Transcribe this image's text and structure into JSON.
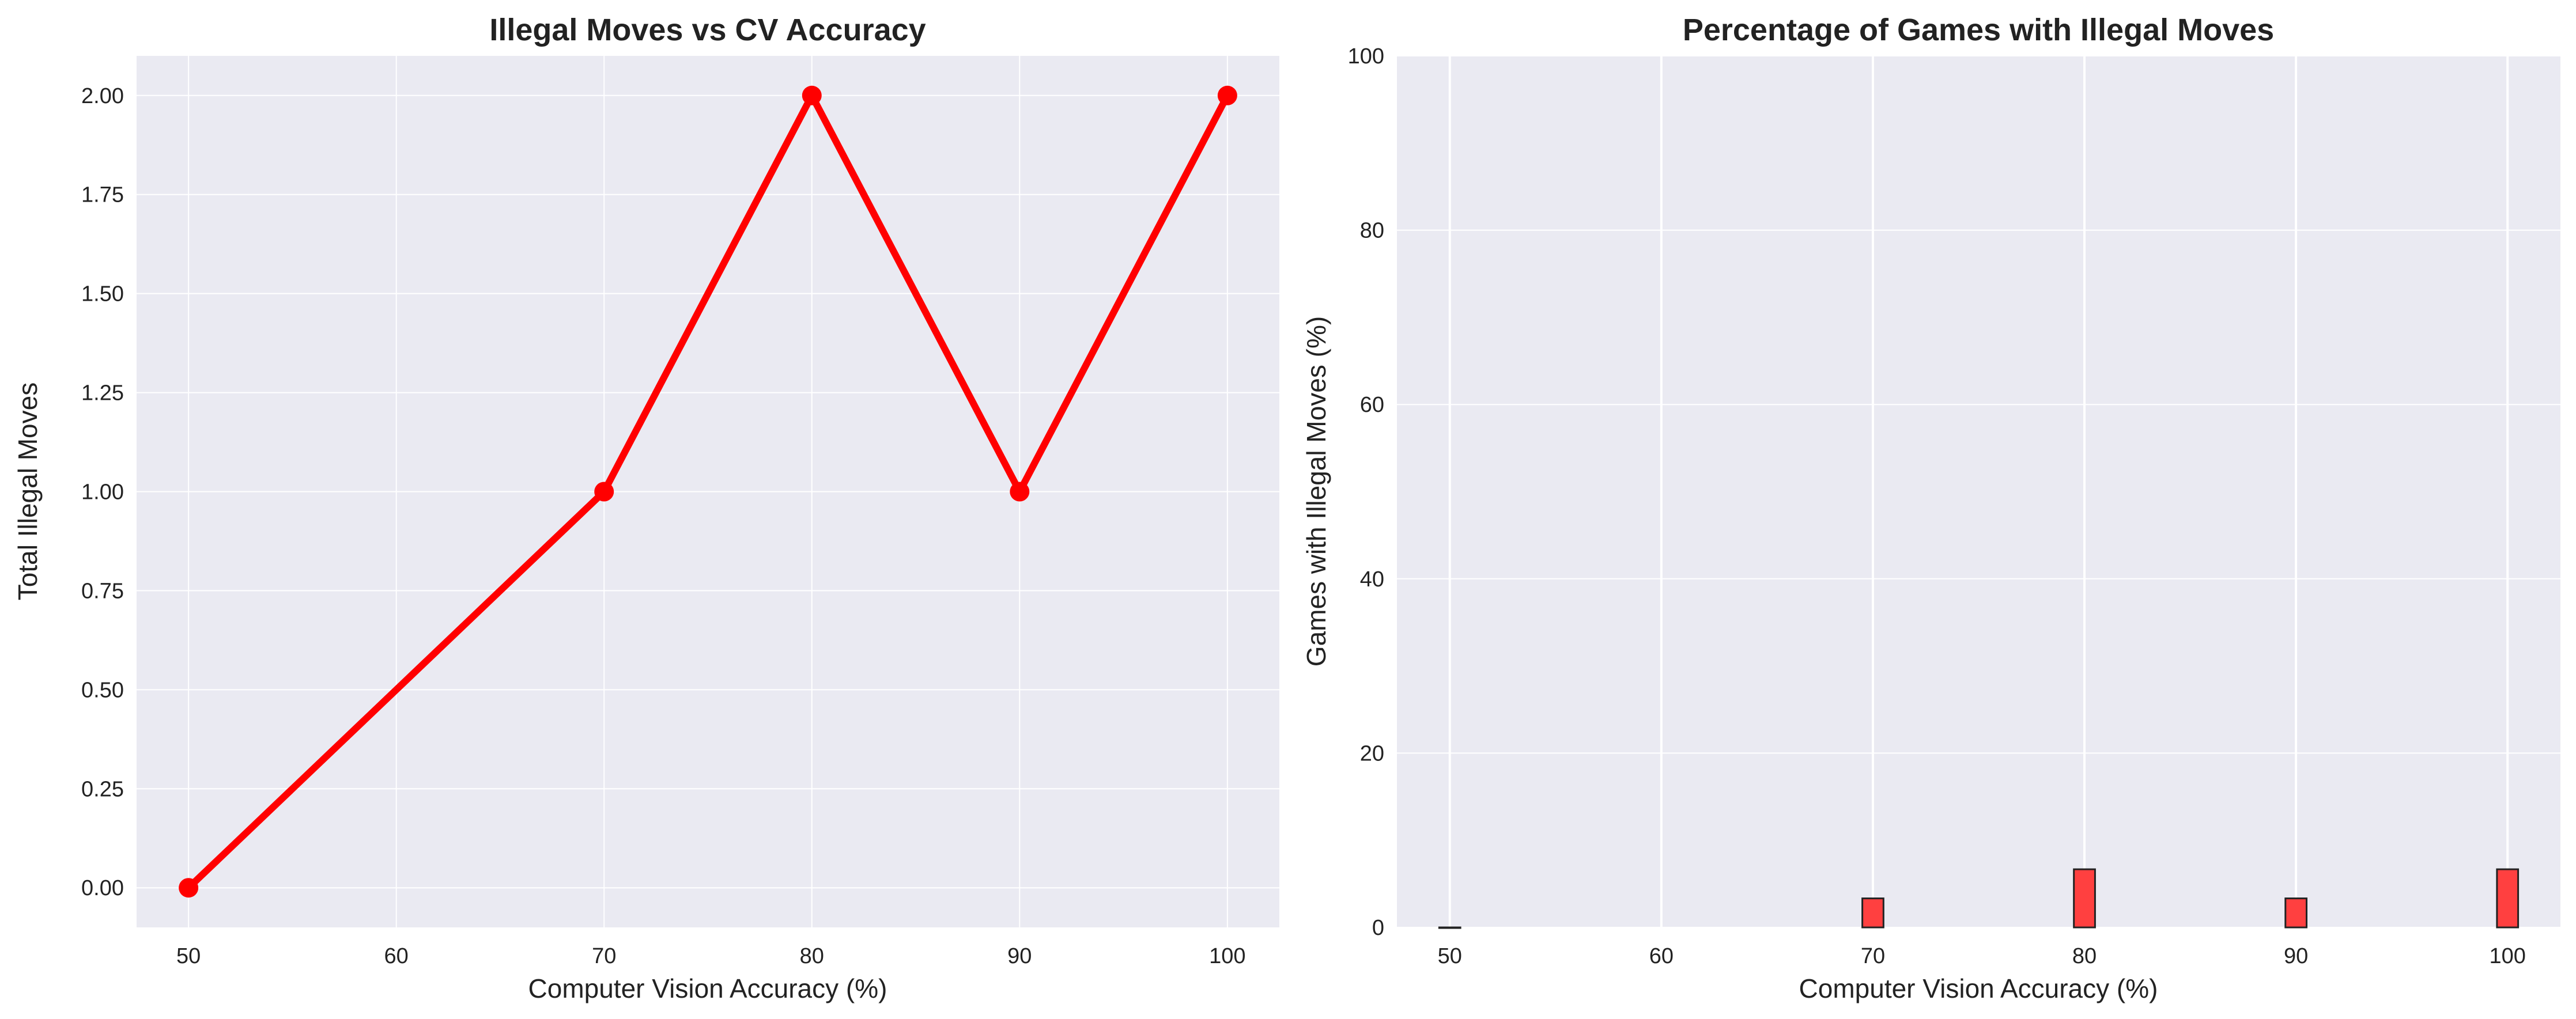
{
  "chart_data": [
    {
      "type": "line",
      "title": "Illegal Moves vs CV Accuracy",
      "xlabel": "Computer Vision Accuracy (%)",
      "ylabel": "Total Illegal Moves",
      "x": [
        50,
        70,
        80,
        90,
        100
      ],
      "y": [
        0,
        1,
        2,
        1,
        2
      ],
      "xticks": [
        50,
        60,
        70,
        80,
        90,
        100
      ],
      "yticks": [
        "0.00",
        "0.25",
        "0.50",
        "0.75",
        "1.00",
        "1.25",
        "1.50",
        "1.75",
        "2.00"
      ],
      "xlim": [
        47.5,
        102.5
      ],
      "ylim": [
        -0.1,
        2.1
      ],
      "grid": true,
      "color": "#ff0000"
    },
    {
      "type": "bar",
      "title": "Percentage of Games with Illegal Moves",
      "xlabel": "Computer Vision Accuracy (%)",
      "ylabel": "Games with Illegal Moves (%)",
      "x": [
        50,
        70,
        80,
        90,
        100
      ],
      "values": [
        0,
        3.33,
        6.67,
        3.33,
        6.67
      ],
      "xticks": [
        50,
        60,
        70,
        80,
        90,
        100
      ],
      "yticks": [
        "0",
        "20",
        "40",
        "60",
        "80",
        "100"
      ],
      "xlim": [
        47.5,
        102.5
      ],
      "ylim": [
        0,
        100
      ],
      "grid": true,
      "color": "#ff4040",
      "edgecolor": "#222222"
    }
  ]
}
